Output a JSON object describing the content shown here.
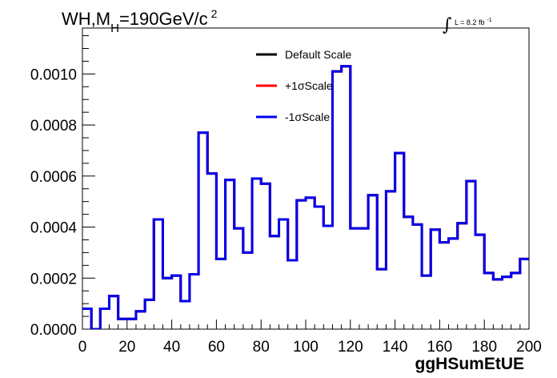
{
  "chart_data": {
    "type": "line",
    "title": "WH,M",
    "title_sub": "H",
    "title_main": "=190GeV/c",
    "title_sup": "2",
    "lumi": "L = 8.2 fb",
    "lumi_sup": "-1",
    "lumi_integral": "∫",
    "xlabel": "ggHSumEtUE",
    "ylabel": "",
    "xlim": [
      0,
      200
    ],
    "ylim": [
      0,
      0.00118
    ],
    "x_ticks": [
      0,
      20,
      40,
      60,
      80,
      100,
      120,
      140,
      160,
      180,
      200
    ],
    "x_tick_labels": [
      "0",
      "20",
      "40",
      "60",
      "80",
      "100",
      "120",
      "140",
      "160",
      "180",
      "200"
    ],
    "y_ticks": [
      0,
      0.0002,
      0.0004,
      0.0006,
      0.0008,
      0.001
    ],
    "y_tick_labels": [
      "0.0000",
      "0.0002",
      "0.0004",
      "0.0006",
      "0.0008",
      "0.0010"
    ],
    "grid": false,
    "legend_position": "top-center",
    "bin_edges": [
      0,
      4,
      8,
      12,
      16,
      20,
      24,
      28,
      32,
      36,
      40,
      44,
      48,
      52,
      56,
      60,
      64,
      68,
      72,
      76,
      80,
      84,
      88,
      92,
      96,
      100,
      104,
      108,
      112,
      116,
      120,
      124,
      128,
      132,
      136,
      140,
      144,
      148,
      152,
      156,
      160,
      164,
      168,
      172,
      176,
      180,
      184,
      188,
      192,
      196,
      200
    ],
    "series": [
      {
        "name": "Default Scale",
        "color": "#000000",
        "values": [
          8e-05,
          0.0,
          8e-05,
          0.00013,
          4e-05,
          4e-05,
          7e-05,
          0.000115,
          0.00043,
          0.0002,
          0.00021,
          0.00011,
          0.000215,
          0.00077,
          0.00061,
          0.000275,
          0.000585,
          0.000395,
          0.0003,
          0.00059,
          0.00057,
          0.000365,
          0.00043,
          0.00027,
          0.000505,
          0.000515,
          0.00048,
          0.000405,
          0.00101,
          0.00103,
          0.000395,
          0.000395,
          0.000525,
          0.000235,
          0.00054,
          0.00069,
          0.00044,
          0.00041,
          0.00021,
          0.00039,
          0.00034,
          0.000355,
          0.000415,
          0.00058,
          0.00037,
          0.00022,
          0.000195,
          0.000205,
          0.00022,
          0.000275
        ]
      },
      {
        "name": "+1σScale",
        "color": "#ff0000",
        "values": [
          8e-05,
          0.0,
          8e-05,
          0.00013,
          4e-05,
          4e-05,
          7e-05,
          0.000115,
          0.00043,
          0.0002,
          0.00021,
          0.00011,
          0.000215,
          0.00077,
          0.00061,
          0.000275,
          0.000585,
          0.000395,
          0.0003,
          0.00059,
          0.00057,
          0.000365,
          0.00043,
          0.00027,
          0.000505,
          0.000515,
          0.00048,
          0.000405,
          0.00101,
          0.00103,
          0.000395,
          0.000395,
          0.000525,
          0.000235,
          0.00054,
          0.00069,
          0.00044,
          0.00041,
          0.00021,
          0.00039,
          0.00034,
          0.000355,
          0.000415,
          0.00058,
          0.00037,
          0.00022,
          0.000195,
          0.000205,
          0.00022,
          0.000275
        ]
      },
      {
        "name": "-1σScale",
        "color": "#0000ee",
        "values": [
          8e-05,
          0.0,
          8e-05,
          0.00013,
          4e-05,
          4e-05,
          7e-05,
          0.000115,
          0.00043,
          0.0002,
          0.00021,
          0.00011,
          0.000215,
          0.00077,
          0.00061,
          0.000275,
          0.000585,
          0.000395,
          0.0003,
          0.00059,
          0.00057,
          0.000365,
          0.00043,
          0.00027,
          0.000505,
          0.000515,
          0.00048,
          0.000405,
          0.00101,
          0.00103,
          0.000395,
          0.000395,
          0.000525,
          0.000235,
          0.00054,
          0.00069,
          0.00044,
          0.00041,
          0.00021,
          0.00039,
          0.00034,
          0.000355,
          0.000415,
          0.00058,
          0.00037,
          0.00022,
          0.000195,
          0.000205,
          0.00022,
          0.000275
        ]
      }
    ]
  }
}
